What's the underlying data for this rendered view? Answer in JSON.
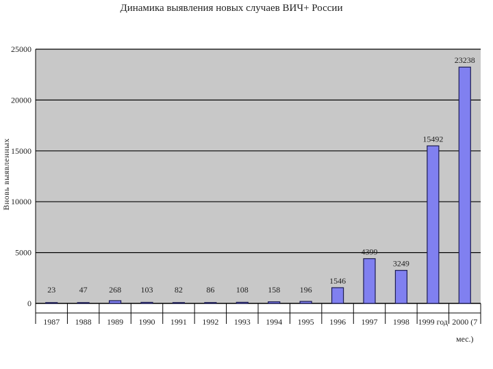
{
  "chart_data": {
    "type": "bar",
    "title": "Динамика выявления новых случаев ВИЧ+ России",
    "ylabel": "Вновь выявленных",
    "xlabel": "",
    "ylim": [
      0,
      25000
    ],
    "yticks": [
      0,
      5000,
      10000,
      15000,
      20000,
      25000
    ],
    "grid": true,
    "legend": "none",
    "categories": [
      "1987",
      "1988",
      "1989",
      "1990",
      "1991",
      "1992",
      "1993",
      "1994",
      "1995",
      "1996",
      "1997",
      "1998",
      "1999 год",
      "2000 (7 мес.)"
    ],
    "values": [
      23,
      47,
      268,
      103,
      82,
      86,
      108,
      158,
      196,
      1546,
      4399,
      3249,
      15492,
      23238
    ],
    "data_labels": [
      "23",
      "47",
      "268",
      "103",
      "82",
      "86",
      "108",
      "158",
      "196",
      "1546",
      "4399",
      "3249",
      "15492",
      "23238"
    ],
    "colors": {
      "bar": "#8080f0",
      "bar_edge": "#1a1a50",
      "plot_bg": "#c8c8c8",
      "grid": "#000000"
    }
  }
}
